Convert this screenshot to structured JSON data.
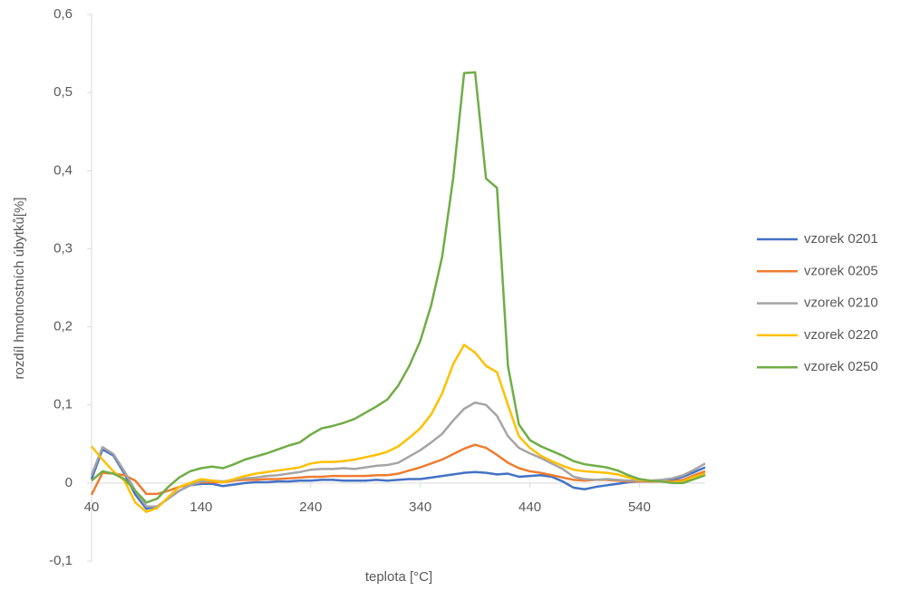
{
  "chart_data": {
    "type": "line",
    "x_label": "teplota [°C]",
    "y_label": "rozdíl hmotnostních úbytků[%]",
    "x": [
      40,
      50,
      60,
      70,
      80,
      90,
      100,
      110,
      120,
      130,
      140,
      150,
      160,
      170,
      180,
      190,
      200,
      210,
      220,
      230,
      240,
      250,
      260,
      270,
      280,
      290,
      300,
      310,
      320,
      330,
      340,
      350,
      360,
      370,
      380,
      390,
      400,
      410,
      420,
      430,
      440,
      450,
      460,
      470,
      480,
      490,
      500,
      510,
      520,
      530,
      540,
      550,
      560,
      570,
      580,
      590,
      600
    ],
    "xlim": [
      40,
      600
    ],
    "xticks": [
      40,
      140,
      240,
      340,
      440,
      540
    ],
    "ylim": [
      -0.1,
      0.6
    ],
    "yticks": [
      {
        "value": -0.1,
        "label": "-0,1"
      },
      0,
      {
        "value": 0.1,
        "label": "0,1"
      },
      {
        "value": 0.2,
        "label": "0,2"
      },
      {
        "value": 0.3,
        "label": "0,3"
      },
      {
        "value": 0.4,
        "label": "0,4"
      },
      {
        "value": 0.5,
        "label": "0,5"
      },
      {
        "value": 0.6,
        "label": "0,6"
      }
    ],
    "grid": false,
    "legend": "right",
    "series": [
      {
        "name": "vzorek 0201",
        "color": "#4472c4",
        "values": [
          0.005,
          0.043,
          0.035,
          0.012,
          -0.015,
          -0.033,
          -0.03,
          -0.02,
          -0.01,
          -0.003,
          -0.001,
          -0.001,
          -0.004,
          -0.002,
          0,
          0.001,
          0.001,
          0.002,
          0.002,
          0.003,
          0.003,
          0.004,
          0.004,
          0.003,
          0.003,
          0.003,
          0.004,
          0.003,
          0.004,
          0.005,
          0.005,
          0.007,
          0.009,
          0.011,
          0.013,
          0.014,
          0.013,
          0.011,
          0.012,
          0.008,
          0.009,
          0.01,
          0.008,
          0.002,
          -0.006,
          -0.008,
          -0.005,
          -0.003,
          -0.001,
          0.001,
          0.002,
          0.002,
          0.003,
          0.004,
          0.008,
          0.014,
          0.02
        ]
      },
      {
        "name": "vzorek 0205",
        "color": "#ed7d31",
        "values": [
          -0.015,
          0.013,
          0.012,
          0.01,
          0.003,
          -0.014,
          -0.014,
          -0.01,
          -0.005,
          -0.002,
          0.001,
          0.001,
          0.001,
          0.003,
          0.004,
          0.004,
          0.005,
          0.005,
          0.006,
          0.007,
          0.008,
          0.008,
          0.009,
          0.009,
          0.009,
          0.009,
          0.01,
          0.01,
          0.012,
          0.016,
          0.02,
          0.025,
          0.03,
          0.037,
          0.044,
          0.049,
          0.045,
          0.036,
          0.026,
          0.019,
          0.015,
          0.013,
          0.01,
          0.007,
          0.004,
          0.003,
          0.004,
          0.004,
          0.003,
          0.002,
          0.002,
          0.002,
          0.002,
          0.002,
          0.004,
          0.01,
          0.015
        ]
      },
      {
        "name": "vzorek 0210",
        "color": "#a5a5a5",
        "values": [
          0.01,
          0.046,
          0.037,
          0.015,
          -0.01,
          -0.03,
          -0.03,
          -0.02,
          -0.01,
          -0.003,
          0.002,
          0.003,
          0.002,
          0.004,
          0.006,
          0.007,
          0.009,
          0.01,
          0.012,
          0.014,
          0.017,
          0.018,
          0.018,
          0.019,
          0.018,
          0.02,
          0.022,
          0.023,
          0.026,
          0.034,
          0.042,
          0.052,
          0.063,
          0.08,
          0.095,
          0.103,
          0.1,
          0.086,
          0.06,
          0.045,
          0.038,
          0.032,
          0.025,
          0.018,
          0.008,
          0.005,
          0.004,
          0.005,
          0.004,
          0.003,
          0.003,
          0.003,
          0.004,
          0.006,
          0.01,
          0.017,
          0.025
        ]
      },
      {
        "name": "vzorek 0220",
        "color": "#ffc000",
        "values": [
          0.047,
          0.03,
          0.015,
          0.003,
          -0.025,
          -0.037,
          -0.032,
          -0.018,
          -0.005,
          0,
          0.005,
          0.003,
          0.001,
          0.005,
          0.009,
          0.012,
          0.014,
          0.016,
          0.018,
          0.02,
          0.025,
          0.027,
          0.027,
          0.028,
          0.03,
          0.033,
          0.036,
          0.04,
          0.047,
          0.058,
          0.07,
          0.088,
          0.115,
          0.152,
          0.177,
          0.167,
          0.15,
          0.142,
          0.1,
          0.06,
          0.045,
          0.035,
          0.028,
          0.022,
          0.017,
          0.015,
          0.014,
          0.013,
          0.011,
          0.007,
          0.004,
          0.003,
          0.002,
          0.001,
          0.002,
          0.008,
          0.012
        ]
      },
      {
        "name": "vzorek 0250",
        "color": "#70ad47",
        "values": [
          0.003,
          0.015,
          0.012,
          0.005,
          -0.01,
          -0.025,
          -0.02,
          -0.005,
          0.007,
          0.015,
          0.019,
          0.021,
          0.019,
          0.024,
          0.03,
          0.034,
          0.038,
          0.043,
          0.048,
          0.052,
          0.062,
          0.07,
          0.073,
          0.077,
          0.082,
          0.09,
          0.098,
          0.107,
          0.125,
          0.15,
          0.182,
          0.228,
          0.29,
          0.39,
          0.525,
          0.526,
          0.39,
          0.378,
          0.15,
          0.075,
          0.055,
          0.047,
          0.041,
          0.035,
          0.028,
          0.024,
          0.022,
          0.02,
          0.016,
          0.01,
          0.005,
          0.003,
          0.002,
          0,
          0,
          0.005,
          0.01
        ]
      }
    ]
  }
}
